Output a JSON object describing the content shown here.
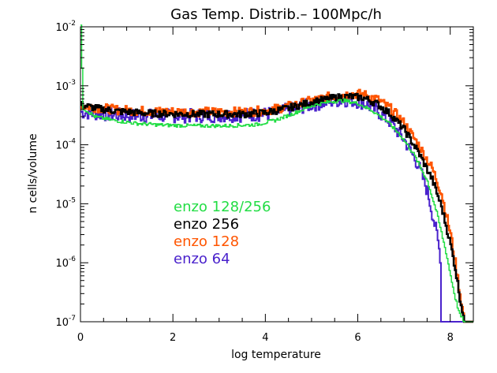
{
  "chart_data": {
    "type": "line",
    "title": "Gas Temp. Distrib.– 100Mpc/h",
    "xlabel": "log temperature",
    "ylabel": "n cells/volume",
    "xlim": [
      0,
      8.5
    ],
    "ylim": [
      1e-07,
      0.01
    ],
    "yscale": "log",
    "xticks": [
      "0",
      "2",
      "4",
      "6",
      "8"
    ],
    "yticks": [
      {
        "base": "10",
        "exp": "-7"
      },
      {
        "base": "10",
        "exp": "-6"
      },
      {
        "base": "10",
        "exp": "-5"
      },
      {
        "base": "10",
        "exp": "-4"
      },
      {
        "base": "10",
        "exp": "-3"
      },
      {
        "base": "10",
        "exp": "-2"
      }
    ],
    "legend_placement": "center-left",
    "series": [
      {
        "name": "enzo 128/256",
        "color": "#22dd44",
        "x": [
          0.0,
          0.05,
          0.3,
          0.7,
          1.2,
          1.8,
          2.5,
          3.2,
          3.8,
          4.2,
          4.6,
          5.0,
          5.4,
          5.7,
          6.0,
          6.3,
          6.6,
          6.9,
          7.2,
          7.5,
          7.7,
          7.9,
          8.0,
          8.1,
          8.2,
          8.3,
          8.5
        ],
        "y": [
          0.01,
          0.00042,
          0.0003,
          0.00026,
          0.00023,
          0.000215,
          0.00021,
          0.00021,
          0.00022,
          0.00026,
          0.00034,
          0.00046,
          0.00054,
          0.00056,
          0.0005,
          0.00038,
          0.00026,
          0.00015,
          7e-05,
          2.4e-05,
          7e-06,
          1.5e-06,
          6e-07,
          2.5e-07,
          1.3e-07,
          1e-07,
          1e-07
        ]
      },
      {
        "name": "enzo 256",
        "color": "#000000",
        "x": [
          0.0,
          0.3,
          0.8,
          1.5,
          2.5,
          3.5,
          4.0,
          4.5,
          5.0,
          5.5,
          5.8,
          6.1,
          6.4,
          6.7,
          7.0,
          7.3,
          7.6,
          7.8,
          8.0,
          8.1,
          8.2,
          8.3,
          8.5
        ],
        "y": [
          0.00048,
          0.00042,
          0.00037,
          0.00034,
          0.00033,
          0.00033,
          0.00035,
          0.00042,
          0.00053,
          0.00063,
          0.00066,
          0.00063,
          0.0005,
          0.00033,
          0.00018,
          7.5e-05,
          2.6e-05,
          9e-06,
          2e-06,
          8e-07,
          2.5e-07,
          1e-07,
          1e-07
        ]
      },
      {
        "name": "enzo 128",
        "color": "#ff5500",
        "x": [
          0.0,
          0.3,
          0.8,
          1.5,
          2.5,
          3.5,
          4.0,
          4.5,
          5.0,
          5.5,
          5.8,
          6.1,
          6.4,
          6.7,
          7.0,
          7.3,
          7.6,
          7.8,
          8.0,
          8.1,
          8.2,
          8.3,
          8.5
        ],
        "y": [
          0.00046,
          0.00043,
          0.00039,
          0.00037,
          0.00036,
          0.00036,
          0.00038,
          0.00045,
          0.00056,
          0.00068,
          0.00073,
          0.00072,
          0.0006,
          0.00041,
          0.00023,
          0.0001,
          4e-05,
          1.5e-05,
          3e-06,
          1e-06,
          3e-07,
          1e-07,
          1e-07
        ]
      },
      {
        "name": "enzo 64",
        "color": "#4a22cc",
        "x": [
          0.0,
          0.3,
          0.8,
          1.5,
          2.5,
          3.5,
          4.0,
          4.5,
          5.0,
          5.5,
          5.8,
          6.1,
          6.4,
          6.7,
          7.0,
          7.3,
          7.5,
          7.7,
          7.78,
          7.8,
          8.5
        ],
        "y": [
          0.00036,
          0.00034,
          0.00032,
          0.00031,
          0.00031,
          0.00032,
          0.00033,
          0.00039,
          0.00048,
          0.00056,
          0.00058,
          0.00052,
          0.00038,
          0.00024,
          0.00012,
          4.5e-05,
          1.6e-05,
          3e-06,
          1.2e-06,
          1e-07,
          1e-07
        ]
      }
    ]
  }
}
